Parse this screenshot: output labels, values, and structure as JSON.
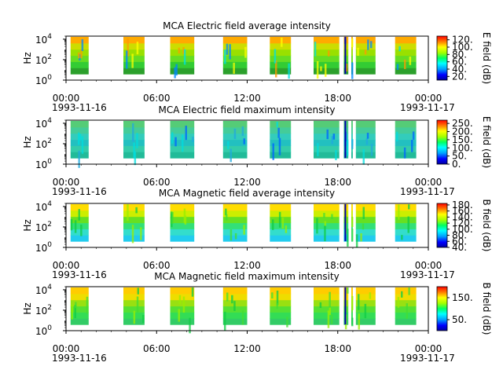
{
  "figure": {
    "time_ticks": [
      "00:00",
      "06:00",
      "12:00",
      "18:00",
      "00:00"
    ],
    "start_date": "1993-11-16",
    "end_date": "1993-11-17",
    "ylabel": "Hz",
    "ytick_labels": [
      "10",
      "10",
      "10"
    ],
    "ytick_exps": [
      "0",
      "2",
      "4"
    ]
  },
  "chart_data": [
    {
      "type": "heatmap",
      "title": "MCA  Electric field average intensity",
      "ylabel": "Hz",
      "y_scale": "log",
      "ylim": [
        1,
        20000
      ],
      "x_ticks": [
        "00:00",
        "06:00",
        "12:00",
        "18:00",
        "00:00"
      ],
      "x_dates": [
        "1993-11-16",
        "1993-11-17"
      ],
      "data_segments_hours": [
        [
          0.3,
          1.5
        ],
        [
          3.8,
          5.2
        ],
        [
          6.9,
          8.5
        ],
        [
          10.4,
          12.0
        ],
        [
          13.5,
          14.9
        ],
        [
          16.4,
          18.1
        ],
        [
          18.4,
          18.7
        ],
        [
          18.9,
          19.0
        ],
        [
          19.2,
          20.5
        ],
        [
          21.8,
          23.2
        ]
      ],
      "colorbar": {
        "label": "E field (dB)",
        "ticks": [
          "20.",
          "40.",
          "60.",
          "80.",
          "100.",
          "120."
        ],
        "range": [
          10,
          130
        ]
      }
    },
    {
      "type": "heatmap",
      "title": "MCA  Electric field maximum intensity",
      "ylabel": "Hz",
      "y_scale": "log",
      "ylim": [
        1,
        20000
      ],
      "x_ticks": [
        "00:00",
        "06:00",
        "12:00",
        "18:00",
        "00:00"
      ],
      "x_dates": [
        "1993-11-16",
        "1993-11-17"
      ],
      "data_segments_hours": [
        [
          0.3,
          1.5
        ],
        [
          3.8,
          5.2
        ],
        [
          6.9,
          8.5
        ],
        [
          10.4,
          12.0
        ],
        [
          13.5,
          14.9
        ],
        [
          16.4,
          18.1
        ],
        [
          18.4,
          18.7
        ],
        [
          18.9,
          19.0
        ],
        [
          19.2,
          20.5
        ],
        [
          21.8,
          23.2
        ]
      ],
      "colorbar": {
        "label": "E field (dB)",
        "ticks": [
          "0.",
          "50.",
          "100.",
          "150.",
          "200.",
          "250."
        ],
        "range": [
          0,
          270
        ]
      }
    },
    {
      "type": "heatmap",
      "title": "MCA  Magnetic field average intensity",
      "ylabel": "Hz",
      "y_scale": "log",
      "ylim": [
        1,
        20000
      ],
      "x_ticks": [
        "00:00",
        "06:00",
        "12:00",
        "18:00",
        "00:00"
      ],
      "x_dates": [
        "1993-11-16",
        "1993-11-17"
      ],
      "data_segments_hours": [
        [
          0.3,
          1.5
        ],
        [
          3.8,
          5.2
        ],
        [
          6.9,
          8.5
        ],
        [
          10.4,
          12.0
        ],
        [
          13.5,
          14.9
        ],
        [
          16.4,
          18.1
        ],
        [
          18.4,
          18.7
        ],
        [
          18.9,
          19.0
        ],
        [
          19.2,
          20.5
        ],
        [
          21.8,
          23.2
        ]
      ],
      "colorbar": {
        "label": "B field (dB)",
        "ticks": [
          "40.",
          "60.",
          "80.",
          "100.",
          "120.",
          "140.",
          "160.",
          "180."
        ],
        "range": [
          40,
          185
        ]
      }
    },
    {
      "type": "heatmap",
      "title": "MCA  Magnetic field maximum intensity",
      "ylabel": "Hz",
      "y_scale": "log",
      "ylim": [
        1,
        20000
      ],
      "x_ticks": [
        "00:00",
        "06:00",
        "12:00",
        "18:00",
        "00:00"
      ],
      "x_dates": [
        "1993-11-16",
        "1993-11-17"
      ],
      "data_segments_hours": [
        [
          0.3,
          1.5
        ],
        [
          3.8,
          5.2
        ],
        [
          6.9,
          8.5
        ],
        [
          10.4,
          12.0
        ],
        [
          13.5,
          14.9
        ],
        [
          16.4,
          18.1
        ],
        [
          18.4,
          18.7
        ],
        [
          18.9,
          19.0
        ],
        [
          19.2,
          20.5
        ],
        [
          21.8,
          23.2
        ]
      ],
      "colorbar": {
        "label": "B field (dB)",
        "ticks": [
          "50.",
          "150."
        ],
        "range": [
          0,
          200
        ]
      }
    }
  ]
}
